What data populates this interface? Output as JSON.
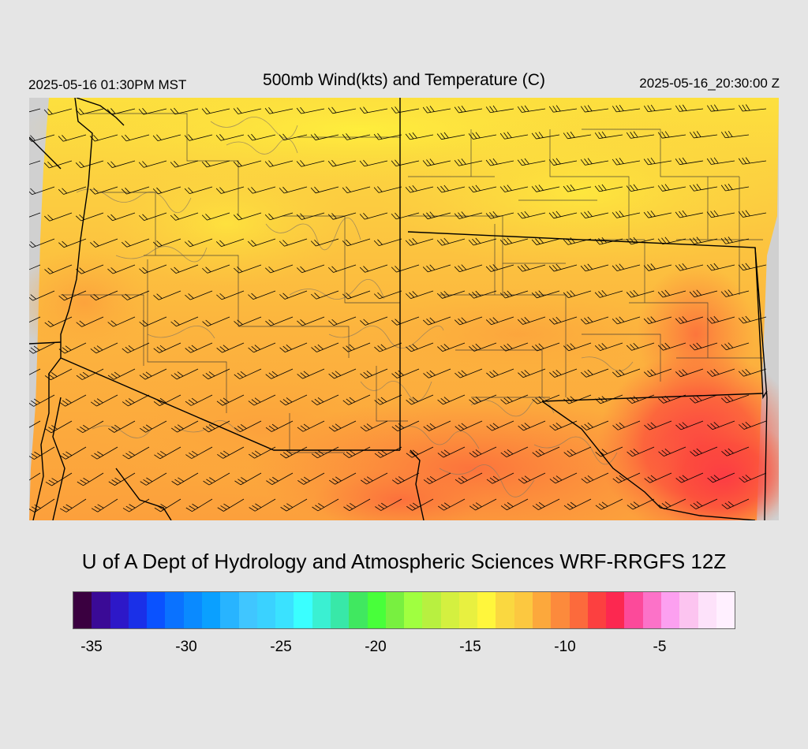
{
  "header": {
    "valid_local": "2025-05-16 01:30PM MST",
    "title": "500mb Wind(kts) and Temperature (C)",
    "valid_z": "2025-05-16_20:30:00 Z"
  },
  "footer": {
    "credit": "U of A Dept of Hydrology and Atmospheric Sciences WRF-RRGFS 12Z"
  },
  "map": {
    "field": "500mb temperature (C) with wind barbs (kts)",
    "temperature_range_shown": [
      -17,
      -8
    ],
    "colors": {
      "background": "#e5e5e5",
      "no_data": "#d0d0d0",
      "boundaries": "#000000",
      "county_lines": "#333333",
      "terrain_contours": "#8a7a60"
    }
  },
  "colorbar": {
    "colors": [
      "#3a0040",
      "#3a0a96",
      "#2d18c8",
      "#1a30e8",
      "#0a52ff",
      "#0a72ff",
      "#0a8aff",
      "#0aa0ff",
      "#28b4ff",
      "#40c6ff",
      "#3ad2ff",
      "#3ae2ff",
      "#3affff",
      "#3af0d2",
      "#38e8a8",
      "#40e860",
      "#48ff3a",
      "#78f040",
      "#a0ff40",
      "#b8f040",
      "#d4f040",
      "#e8f040",
      "#fff63c",
      "#fad840",
      "#fcc840",
      "#fca83c",
      "#fc8a3c",
      "#fc6a3c",
      "#fc4040",
      "#fc2850",
      "#fc4a9a",
      "#fc72c8",
      "#fca0f0",
      "#fcc4f0",
      "#fde2fa",
      "#fff0ff"
    ],
    "tick_labels": [
      "-35",
      "-30",
      "-25",
      "-20",
      "-15",
      "-10",
      "-5"
    ],
    "tick_values": [
      -35,
      -30,
      -25,
      -20,
      -15,
      -10,
      -5
    ],
    "min": -36,
    "max": -1
  }
}
